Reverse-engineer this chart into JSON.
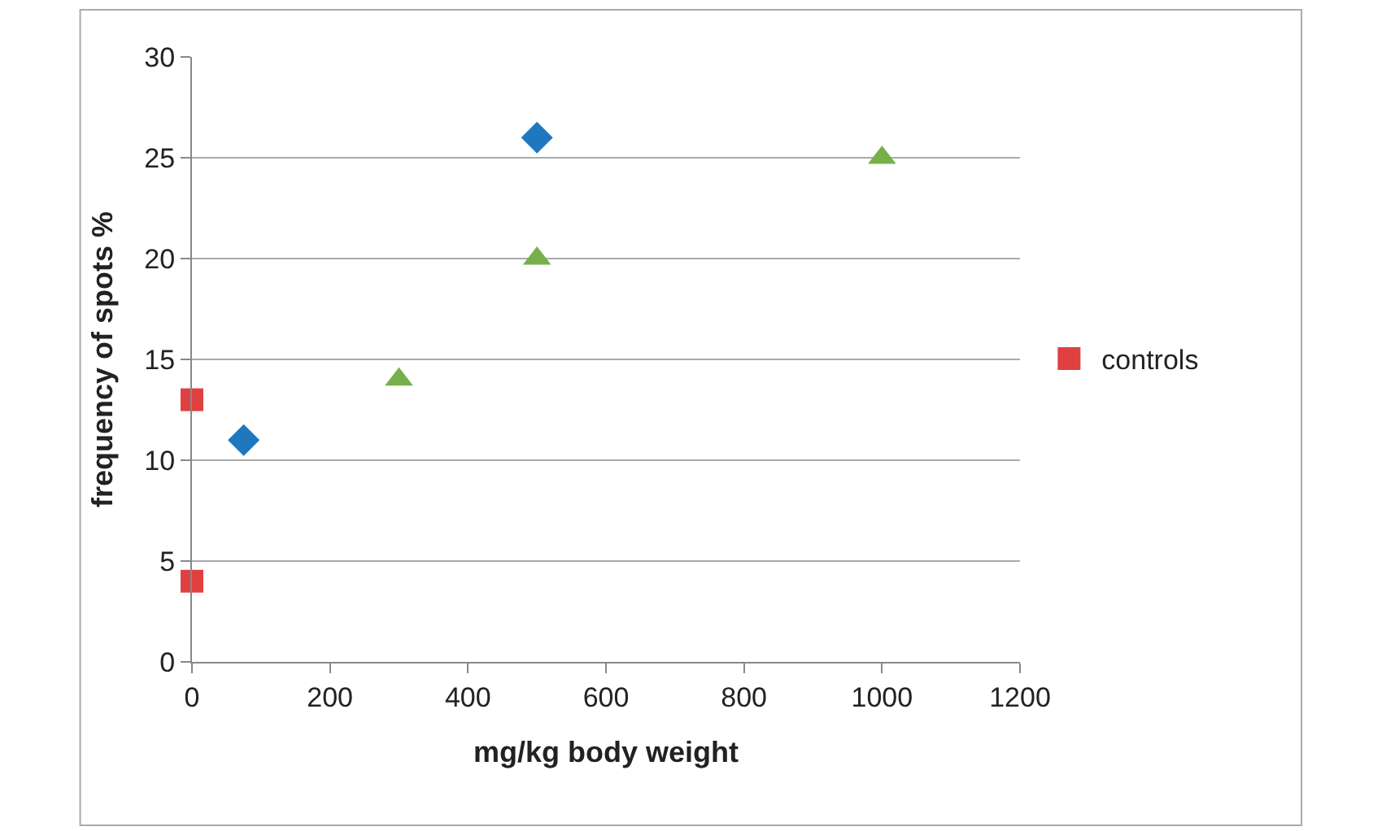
{
  "chart_data": {
    "type": "scatter",
    "xlabel": "mg/kg body weight",
    "ylabel": "frequency of spots %",
    "xlim": [
      0,
      1200
    ],
    "xticks": [
      0,
      200,
      400,
      600,
      800,
      1000,
      1200
    ],
    "ylim": [
      0,
      30
    ],
    "yticks": [
      0,
      5,
      10,
      15,
      20,
      25,
      30
    ],
    "grid": "y",
    "legend": "right",
    "series": [
      {
        "color": "#1f77c0",
        "marker": "diamond",
        "x": [
          75,
          500
        ],
        "values": [
          11,
          26
        ]
      },
      {
        "color": "#77b04a",
        "marker": "triangle",
        "x": [
          300,
          500,
          1000
        ],
        "values": [
          14,
          20,
          25
        ]
      },
      {
        "name": "controls",
        "color": "#e04040",
        "marker": "square",
        "x": [
          0,
          0
        ],
        "values": [
          13,
          4
        ]
      }
    ]
  }
}
